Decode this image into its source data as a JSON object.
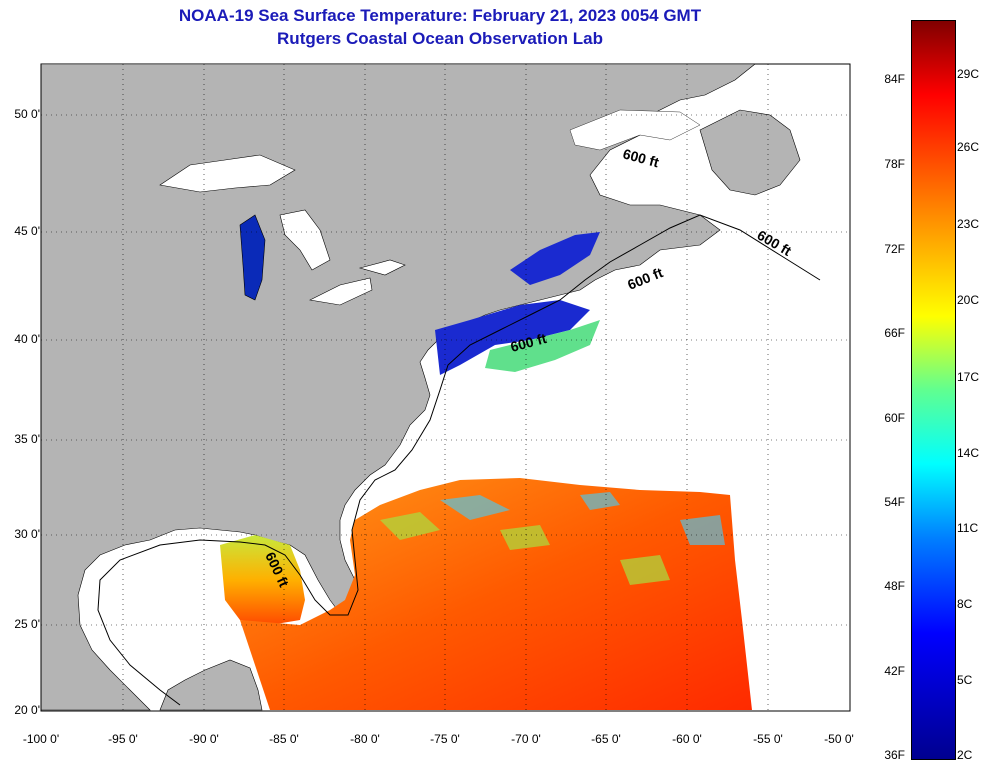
{
  "title": {
    "line1": "NOAA-19 Sea Surface Temperature:  February 21, 2023 0054 GMT",
    "line2": "Rutgers Coastal Ocean Observation Lab"
  },
  "map": {
    "lon_range": [
      -100,
      -50
    ],
    "lat_range": [
      20,
      52.5
    ],
    "grid": "dotted",
    "lat_labels": [
      "50 0'",
      "45 0'",
      "40 0'",
      "35 0'",
      "30 0'",
      "25 0'",
      "20 0'"
    ],
    "lon_labels": [
      "-100 0'",
      "-95 0'",
      "-90 0'",
      "-85 0'",
      "-80 0'",
      "-75 0'",
      "-70 0'",
      "-65 0'",
      "-60 0'",
      "-55 0'",
      "-50 0'"
    ],
    "contour_labels": [
      "600 ft",
      "600 ft",
      "600 ft",
      "600 ft",
      "600 ft"
    ],
    "land_color": "#b4b4b4",
    "no_data_color": "#ffffff"
  },
  "colorbar": {
    "fahrenheit_labels": [
      "84F",
      "78F",
      "72F",
      "66F",
      "60F",
      "54F",
      "48F",
      "42F",
      "36F"
    ],
    "celsius_labels": [
      "29C",
      "26C",
      "23C",
      "20C",
      "17C",
      "14C",
      "11C",
      "8C",
      "5C",
      "2C"
    ],
    "colors": [
      "#00008f",
      "#0000ff",
      "#0080ff",
      "#00ffff",
      "#60ff90",
      "#ffff00",
      "#ff8000",
      "#ff0000",
      "#800000"
    ]
  }
}
